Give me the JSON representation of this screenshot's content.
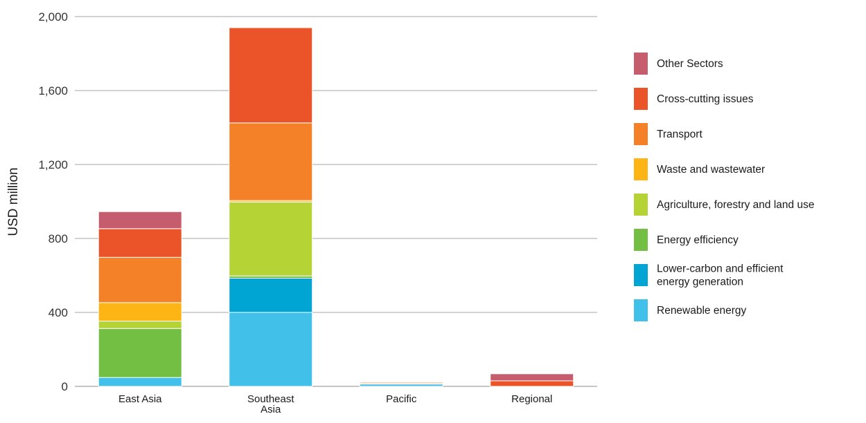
{
  "chart_data": {
    "type": "bar",
    "stacked": true,
    "categories": [
      [
        "East Asia"
      ],
      [
        "Southeast",
        "Asia"
      ],
      [
        "Pacific"
      ],
      [
        "Regional"
      ]
    ],
    "ylabel": "USD  million",
    "ylim": [
      0,
      2000
    ],
    "yticks": [
      0,
      400,
      800,
      1200,
      1600,
      2000
    ],
    "ytick_labels": [
      "0",
      "400",
      "800",
      "1,200",
      "1,600",
      "2,000"
    ],
    "grid": true,
    "legend": "right",
    "series": [
      {
        "name": [
          "Renewable energy"
        ],
        "color": "#41c0e9",
        "values": [
          48,
          400,
          12,
          0
        ]
      },
      {
        "name": [
          "Lower-carbon and efficient",
          "energy generation"
        ],
        "color": "#00a5d4",
        "values": [
          0,
          185,
          0,
          0
        ]
      },
      {
        "name": [
          "Energy efficiency"
        ],
        "color": "#72bf44",
        "values": [
          265,
          12,
          0,
          0
        ]
      },
      {
        "name": [
          "Agriculture, forestry and land use"
        ],
        "color": "#b5d334",
        "values": [
          40,
          400,
          0,
          0
        ]
      },
      {
        "name": [
          "Waste and wastewater"
        ],
        "color": "#fdb515",
        "values": [
          100,
          8,
          0,
          0
        ]
      },
      {
        "name": [
          "Transport"
        ],
        "color": "#f48028",
        "values": [
          245,
          420,
          5,
          0
        ]
      },
      {
        "name": [
          "Cross-cutting issues"
        ],
        "color": "#eb5428",
        "values": [
          155,
          515,
          5,
          30
        ]
      },
      {
        "name": [
          "Other Sectors"
        ],
        "color": "#c55d6e",
        "values": [
          92,
          0,
          0,
          38
        ]
      }
    ]
  }
}
